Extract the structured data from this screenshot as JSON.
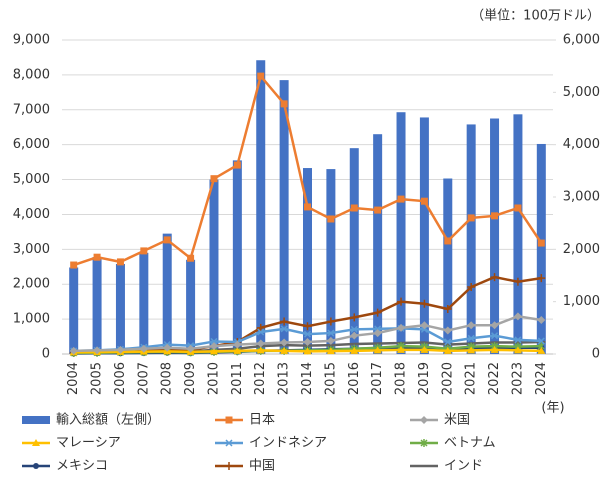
{
  "chart_data": {
    "type": "bar-line",
    "unit_label": "（単位：100万ドル）",
    "x_label": "(年)",
    "categories": [
      "2004",
      "2005",
      "2006",
      "2007",
      "2008",
      "2009",
      "2010",
      "2011",
      "2012",
      "2013",
      "2014",
      "2015",
      "2016",
      "2017",
      "2018",
      "2019",
      "2020",
      "2021",
      "2022",
      "2023",
      "2024"
    ],
    "ylim": [
      0,
      9000
    ],
    "yticks": [
      0,
      {
        "value": 1000,
        "label": "1,000"
      },
      {
        "value": 2000,
        "label": "2,000"
      },
      {
        "value": 3000,
        "label": "3,000"
      },
      {
        "value": 4000,
        "label": "4,000"
      },
      {
        "value": 5000,
        "label": "5,000"
      },
      {
        "value": 6000,
        "label": "6,000"
      },
      {
        "value": 7000,
        "label": "7,000"
      },
      {
        "value": 8000,
        "label": "8,000"
      },
      {
        "value": 9000,
        "label": "9,000"
      }
    ],
    "y2lim": [
      0,
      6000
    ],
    "y2ticks": [
      0,
      {
        "value": 1000,
        "label": "1,000"
      },
      {
        "value": 2000,
        "label": "2,000"
      },
      {
        "value": 3000,
        "label": "3,000"
      },
      {
        "value": 4000,
        "label": "4,000"
      },
      {
        "value": 5000,
        "label": "5,000"
      },
      {
        "value": 6000,
        "label": "6,000"
      }
    ],
    "grid": true,
    "series": [
      {
        "name": "輸入総額（左側）",
        "color": "#4472c4",
        "values": [
          2480,
          2780,
          2580,
          2900,
          3450,
          2700,
          5000,
          5550,
          8420,
          7850,
          5330,
          5300,
          5900,
          6300,
          6930,
          6780,
          5030,
          6580,
          6750,
          6870,
          6020
        ]
      },
      {
        "name": "日本",
        "color": "#ed7d31",
        "axis": "y2",
        "values": [
          1700,
          1850,
          1760,
          1970,
          2180,
          1830,
          3350,
          3610,
          5310,
          4780,
          2810,
          2580,
          2790,
          2750,
          2960,
          2920,
          2160,
          2600,
          2640,
          2790,
          2120
        ]
      },
      {
        "name": "米国",
        "color": "#a5a5a5",
        "axis": "y2",
        "values": [
          60,
          70,
          80,
          100,
          120,
          100,
          150,
          180,
          200,
          220,
          230,
          250,
          350,
          400,
          500,
          550,
          450,
          550,
          550,
          720,
          650
        ]
      },
      {
        "name": "マレーシア",
        "color": "#ffc000",
        "axis": "y2",
        "values": [
          30,
          35,
          40,
          45,
          50,
          40,
          50,
          60,
          70,
          60,
          50,
          55,
          60,
          70,
          80,
          80,
          60,
          70,
          80,
          70,
          60
        ]
      },
      {
        "name": "インドネシア",
        "color": "#5b9bd5",
        "axis": "y2",
        "values": [
          60,
          70,
          90,
          130,
          180,
          160,
          240,
          230,
          420,
          480,
          380,
          400,
          470,
          480,
          490,
          470,
          230,
          300,
          350,
          270,
          250
        ]
      },
      {
        "name": "ベトナム",
        "color": "#70ad47",
        "axis": "y2",
        "values": [
          20,
          25,
          30,
          35,
          40,
          30,
          40,
          50,
          60,
          60,
          70,
          80,
          100,
          120,
          150,
          140,
          100,
          140,
          150,
          140,
          150
        ]
      },
      {
        "name": "メキシコ",
        "color": "#264478",
        "axis": "y2",
        "values": [
          10,
          15,
          15,
          20,
          25,
          20,
          30,
          40,
          60,
          70,
          80,
          90,
          100,
          110,
          120,
          110,
          80,
          100,
          110,
          120,
          120
        ]
      },
      {
        "name": "中国",
        "color": "#9e480e",
        "axis": "y2",
        "values": [
          20,
          30,
          40,
          60,
          80,
          80,
          150,
          230,
          500,
          620,
          530,
          620,
          700,
          790,
          1000,
          960,
          860,
          1280,
          1470,
          1380,
          1450
        ]
      },
      {
        "name": "インド",
        "color": "#636363",
        "axis": "y2",
        "values": [
          20,
          25,
          30,
          40,
          50,
          50,
          80,
          100,
          150,
          170,
          160,
          170,
          190,
          200,
          210,
          220,
          180,
          200,
          220,
          220,
          230
        ]
      }
    ]
  }
}
